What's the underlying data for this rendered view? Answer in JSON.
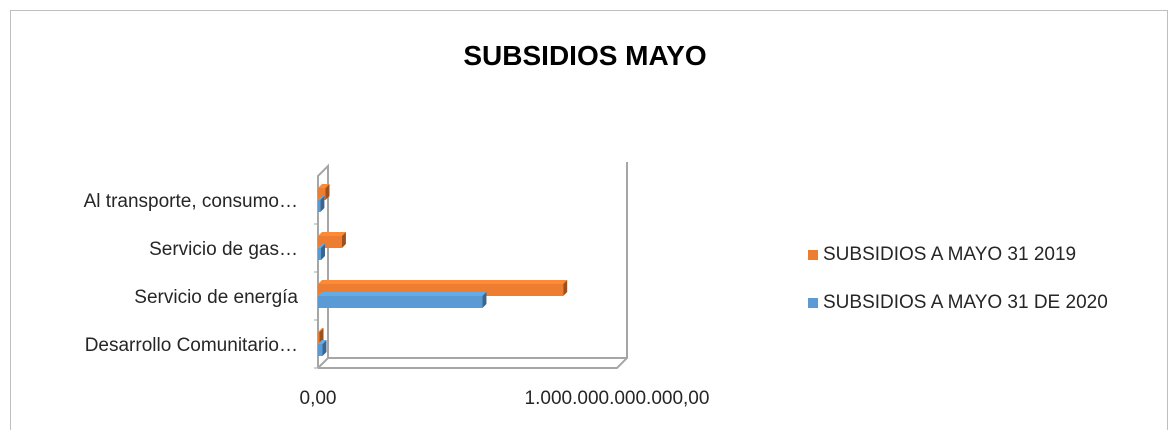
{
  "chart_data": {
    "type": "bar",
    "orientation": "horizontal",
    "title": "SUBSIDIOS MAYO",
    "categories": [
      "Desarrollo Comunitario…",
      "Servicio de energía",
      "Servicio de gas…",
      "Al transporte, consumo…"
    ],
    "series": [
      {
        "name": "SUBSIDIOS A MAYO 31 DE 2020",
        "color": "#5B9BD5",
        "values": [
          15000000000,
          550000000000,
          10000000000,
          8000000000
        ]
      },
      {
        "name": "SUBSIDIOS A MAYO 31  2019",
        "color": "#ED7D31",
        "values": [
          5000000000,
          820000000000,
          80000000000,
          25000000000
        ]
      }
    ],
    "xlim": [
      0,
      1000000000000
    ],
    "xticks": [
      "0,00",
      "1.000.000.000.000,00"
    ],
    "legend_position": "right",
    "grid": false
  }
}
